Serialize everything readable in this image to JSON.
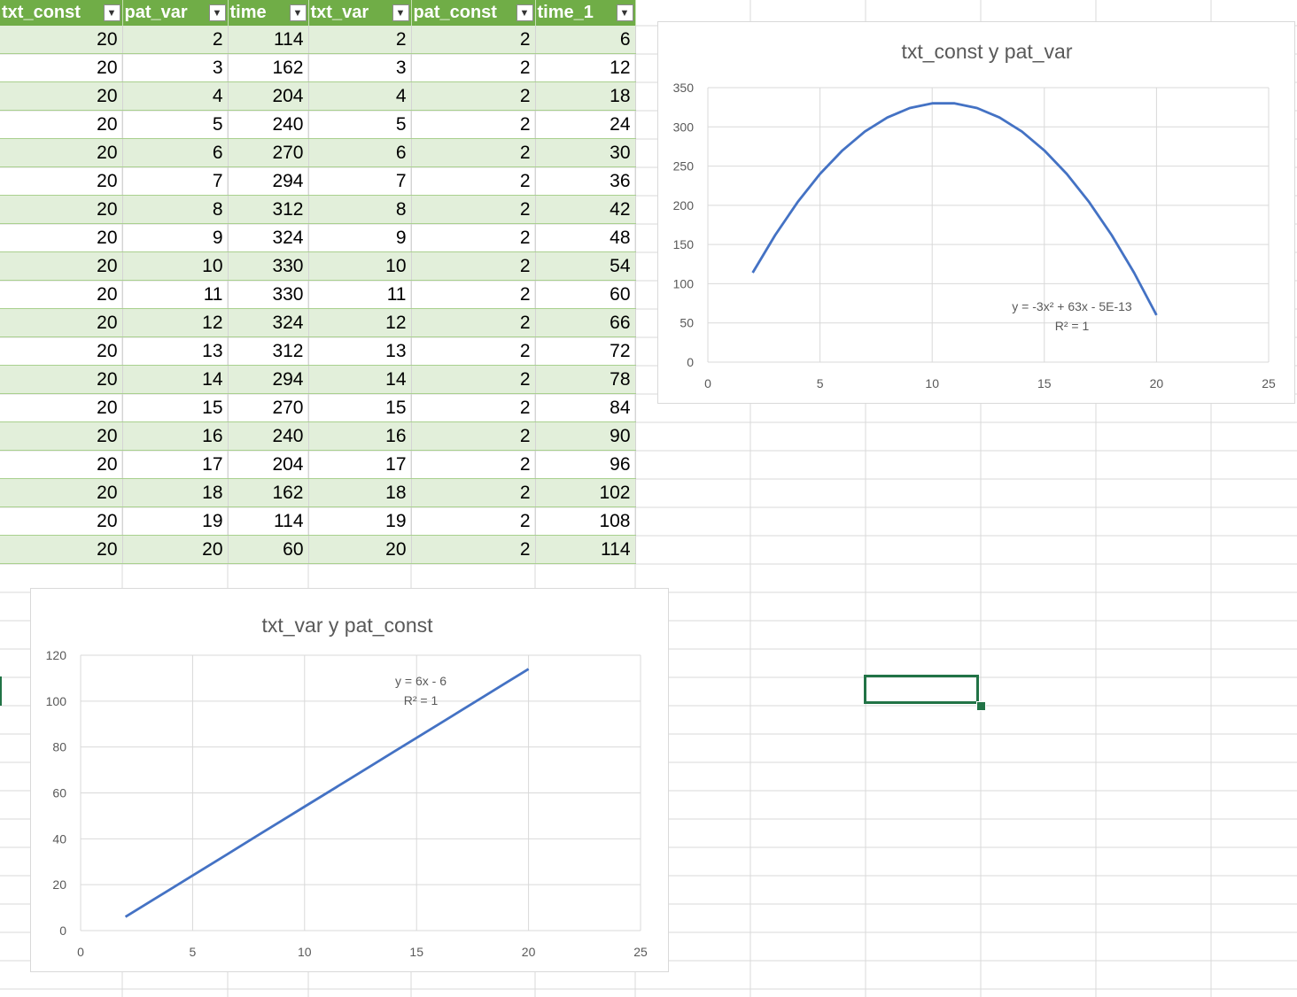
{
  "table": {
    "columns": [
      "txt_const",
      "pat_var",
      "time",
      "txt_var",
      "pat_const",
      "time_1"
    ],
    "rows": [
      [
        20,
        2,
        114,
        2,
        2,
        6
      ],
      [
        20,
        3,
        162,
        3,
        2,
        12
      ],
      [
        20,
        4,
        204,
        4,
        2,
        18
      ],
      [
        20,
        5,
        240,
        5,
        2,
        24
      ],
      [
        20,
        6,
        270,
        6,
        2,
        30
      ],
      [
        20,
        7,
        294,
        7,
        2,
        36
      ],
      [
        20,
        8,
        312,
        8,
        2,
        42
      ],
      [
        20,
        9,
        324,
        9,
        2,
        48
      ],
      [
        20,
        10,
        330,
        10,
        2,
        54
      ],
      [
        20,
        11,
        330,
        11,
        2,
        60
      ],
      [
        20,
        12,
        324,
        12,
        2,
        66
      ],
      [
        20,
        13,
        312,
        13,
        2,
        72
      ],
      [
        20,
        14,
        294,
        14,
        2,
        78
      ],
      [
        20,
        15,
        270,
        15,
        2,
        84
      ],
      [
        20,
        16,
        240,
        16,
        2,
        90
      ],
      [
        20,
        17,
        204,
        17,
        2,
        96
      ],
      [
        20,
        18,
        162,
        18,
        2,
        102
      ],
      [
        20,
        19,
        114,
        19,
        2,
        108
      ],
      [
        20,
        20,
        60,
        20,
        2,
        114
      ]
    ]
  },
  "colors": {
    "header": "#70ad47",
    "band": "#e2efda",
    "series": "#4472c4",
    "selection": "#217346"
  },
  "chart_data": [
    {
      "type": "line",
      "title": "txt_const y pat_var",
      "x": [
        2,
        3,
        4,
        5,
        6,
        7,
        8,
        9,
        10,
        11,
        12,
        13,
        14,
        15,
        16,
        17,
        18,
        19,
        20
      ],
      "series": [
        {
          "values": [
            114,
            162,
            204,
            240,
            270,
            294,
            312,
            324,
            330,
            330,
            324,
            312,
            294,
            270,
            240,
            204,
            162,
            114,
            60
          ]
        }
      ],
      "xlim": [
        0,
        25
      ],
      "ylim": [
        0,
        350
      ],
      "xticks": [
        0,
        5,
        10,
        15,
        20,
        25
      ],
      "yticks": [
        0,
        50,
        100,
        150,
        200,
        250,
        300,
        350
      ],
      "trendline": {
        "equation": "y = -3x² + 63x - 5E-13",
        "r2": "R² = 1"
      },
      "grid": true
    },
    {
      "type": "line",
      "title": "txt_var y pat_const",
      "x": [
        2,
        3,
        4,
        5,
        6,
        7,
        8,
        9,
        10,
        11,
        12,
        13,
        14,
        15,
        16,
        17,
        18,
        19,
        20
      ],
      "series": [
        {
          "values": [
            6,
            12,
            18,
            24,
            30,
            36,
            42,
            48,
            54,
            60,
            66,
            72,
            78,
            84,
            90,
            96,
            102,
            108,
            114
          ]
        }
      ],
      "xlim": [
        0,
        25
      ],
      "ylim": [
        0,
        120
      ],
      "xticks": [
        0,
        5,
        10,
        15,
        20,
        25
      ],
      "yticks": [
        0,
        20,
        40,
        60,
        80,
        100,
        120
      ],
      "trendline": {
        "equation": "y = 6x - 6",
        "r2": "R² = 1"
      },
      "grid": true
    }
  ]
}
